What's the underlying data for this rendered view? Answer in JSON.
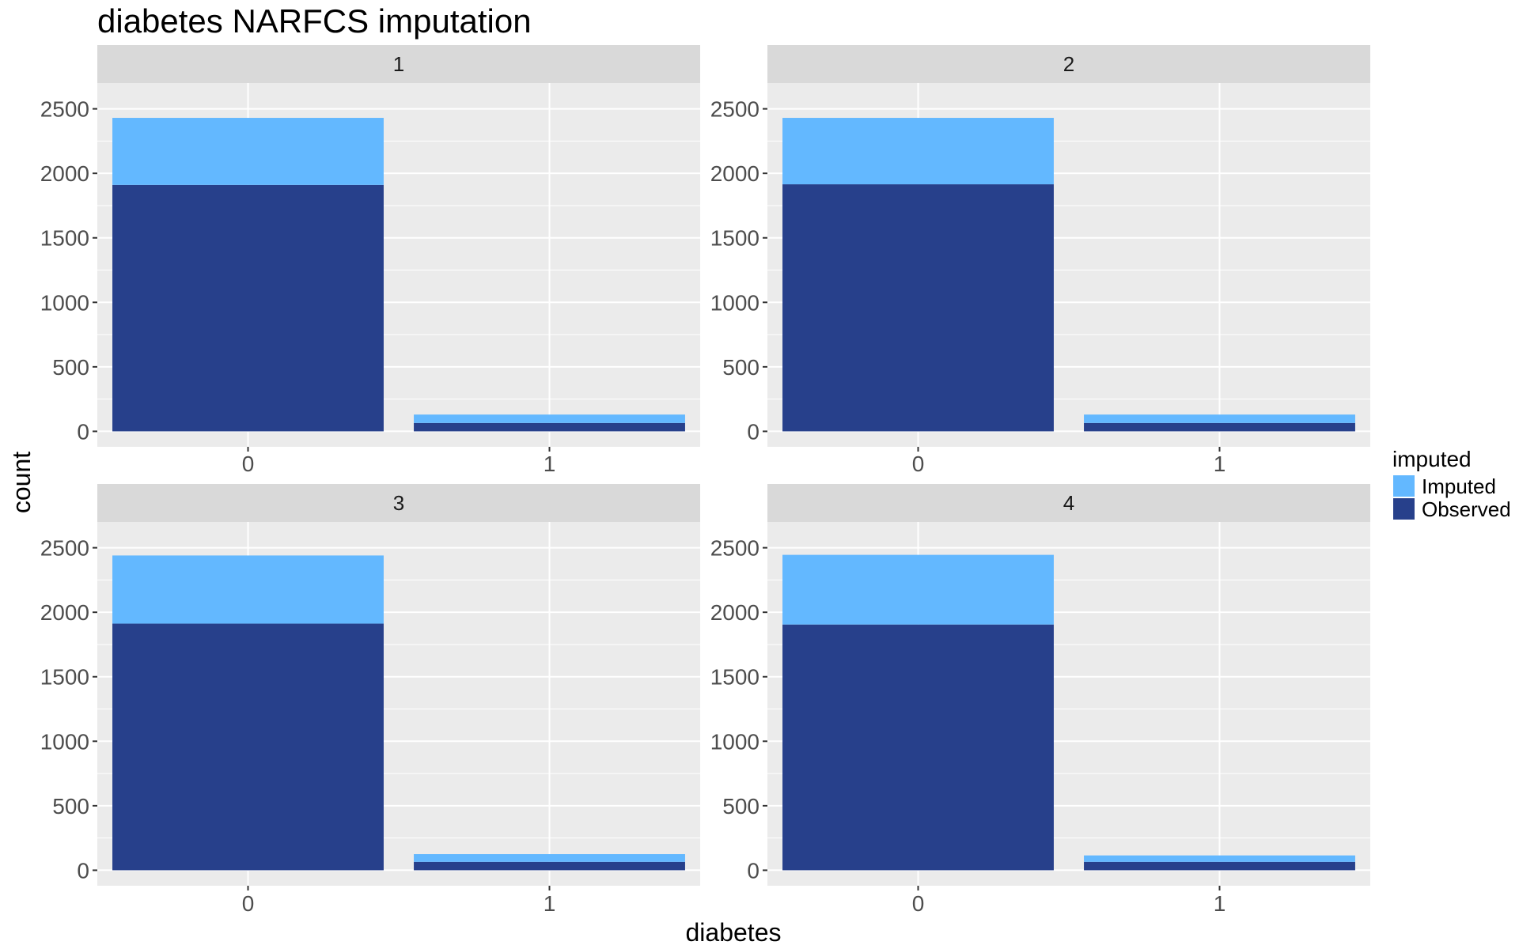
{
  "chart_data": {
    "type": "bar",
    "stacked": true,
    "title": "diabetes NARFCS imputation",
    "xlabel": "diabetes",
    "ylabel": "count",
    "categories": [
      "0",
      "1"
    ],
    "ylim": [
      -120,
      2700
    ],
    "yticks": [
      0,
      500,
      1000,
      1500,
      2000,
      2500
    ],
    "grid": true,
    "legend": {
      "title": "imputed",
      "position": "right",
      "entries": [
        {
          "name": "Imputed",
          "color": "#63b8ff"
        },
        {
          "name": "Observed",
          "color": "#27408b"
        }
      ]
    },
    "facets": [
      {
        "label": "1",
        "series": [
          {
            "name": "Observed",
            "values": [
              1910,
              65
            ]
          },
          {
            "name": "Imputed",
            "values": [
              520,
              65
            ]
          }
        ]
      },
      {
        "label": "2",
        "series": [
          {
            "name": "Observed",
            "values": [
              1915,
              65
            ]
          },
          {
            "name": "Imputed",
            "values": [
              515,
              65
            ]
          }
        ]
      },
      {
        "label": "3",
        "series": [
          {
            "name": "Observed",
            "values": [
              1912,
              65
            ]
          },
          {
            "name": "Imputed",
            "values": [
              528,
              60
            ]
          }
        ]
      },
      {
        "label": "4",
        "series": [
          {
            "name": "Observed",
            "values": [
              1905,
              65
            ]
          },
          {
            "name": "Imputed",
            "values": [
              540,
              50
            ]
          }
        ]
      }
    ]
  }
}
